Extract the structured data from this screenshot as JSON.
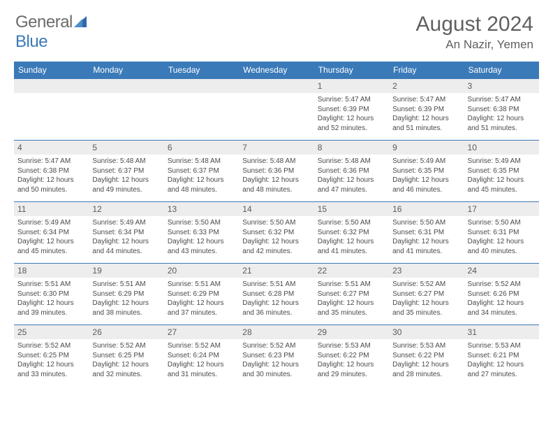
{
  "brand": {
    "text_gray": "General",
    "text_blue": "Blue"
  },
  "header": {
    "month_title": "August 2024",
    "location": "An Nazir, Yemen"
  },
  "colors": {
    "header_bg": "#3b7ab8",
    "header_text": "#ffffff",
    "daynum_bg": "#ededed",
    "border": "#3b7ab8",
    "body_text": "#4a4a4a",
    "title_text": "#606060"
  },
  "day_headers": [
    "Sunday",
    "Monday",
    "Tuesday",
    "Wednesday",
    "Thursday",
    "Friday",
    "Saturday"
  ],
  "weeks": [
    [
      {
        "n": "",
        "sr": "",
        "ss": "",
        "dl": ""
      },
      {
        "n": "",
        "sr": "",
        "ss": "",
        "dl": ""
      },
      {
        "n": "",
        "sr": "",
        "ss": "",
        "dl": ""
      },
      {
        "n": "",
        "sr": "",
        "ss": "",
        "dl": ""
      },
      {
        "n": "1",
        "sr": "5:47 AM",
        "ss": "6:39 PM",
        "dl": "12 hours and 52 minutes."
      },
      {
        "n": "2",
        "sr": "5:47 AM",
        "ss": "6:39 PM",
        "dl": "12 hours and 51 minutes."
      },
      {
        "n": "3",
        "sr": "5:47 AM",
        "ss": "6:38 PM",
        "dl": "12 hours and 51 minutes."
      }
    ],
    [
      {
        "n": "4",
        "sr": "5:47 AM",
        "ss": "6:38 PM",
        "dl": "12 hours and 50 minutes."
      },
      {
        "n": "5",
        "sr": "5:48 AM",
        "ss": "6:37 PM",
        "dl": "12 hours and 49 minutes."
      },
      {
        "n": "6",
        "sr": "5:48 AM",
        "ss": "6:37 PM",
        "dl": "12 hours and 48 minutes."
      },
      {
        "n": "7",
        "sr": "5:48 AM",
        "ss": "6:36 PM",
        "dl": "12 hours and 48 minutes."
      },
      {
        "n": "8",
        "sr": "5:48 AM",
        "ss": "6:36 PM",
        "dl": "12 hours and 47 minutes."
      },
      {
        "n": "9",
        "sr": "5:49 AM",
        "ss": "6:35 PM",
        "dl": "12 hours and 46 minutes."
      },
      {
        "n": "10",
        "sr": "5:49 AM",
        "ss": "6:35 PM",
        "dl": "12 hours and 45 minutes."
      }
    ],
    [
      {
        "n": "11",
        "sr": "5:49 AM",
        "ss": "6:34 PM",
        "dl": "12 hours and 45 minutes."
      },
      {
        "n": "12",
        "sr": "5:49 AM",
        "ss": "6:34 PM",
        "dl": "12 hours and 44 minutes."
      },
      {
        "n": "13",
        "sr": "5:50 AM",
        "ss": "6:33 PM",
        "dl": "12 hours and 43 minutes."
      },
      {
        "n": "14",
        "sr": "5:50 AM",
        "ss": "6:32 PM",
        "dl": "12 hours and 42 minutes."
      },
      {
        "n": "15",
        "sr": "5:50 AM",
        "ss": "6:32 PM",
        "dl": "12 hours and 41 minutes."
      },
      {
        "n": "16",
        "sr": "5:50 AM",
        "ss": "6:31 PM",
        "dl": "12 hours and 41 minutes."
      },
      {
        "n": "17",
        "sr": "5:50 AM",
        "ss": "6:31 PM",
        "dl": "12 hours and 40 minutes."
      }
    ],
    [
      {
        "n": "18",
        "sr": "5:51 AM",
        "ss": "6:30 PM",
        "dl": "12 hours and 39 minutes."
      },
      {
        "n": "19",
        "sr": "5:51 AM",
        "ss": "6:29 PM",
        "dl": "12 hours and 38 minutes."
      },
      {
        "n": "20",
        "sr": "5:51 AM",
        "ss": "6:29 PM",
        "dl": "12 hours and 37 minutes."
      },
      {
        "n": "21",
        "sr": "5:51 AM",
        "ss": "6:28 PM",
        "dl": "12 hours and 36 minutes."
      },
      {
        "n": "22",
        "sr": "5:51 AM",
        "ss": "6:27 PM",
        "dl": "12 hours and 35 minutes."
      },
      {
        "n": "23",
        "sr": "5:52 AM",
        "ss": "6:27 PM",
        "dl": "12 hours and 35 minutes."
      },
      {
        "n": "24",
        "sr": "5:52 AM",
        "ss": "6:26 PM",
        "dl": "12 hours and 34 minutes."
      }
    ],
    [
      {
        "n": "25",
        "sr": "5:52 AM",
        "ss": "6:25 PM",
        "dl": "12 hours and 33 minutes."
      },
      {
        "n": "26",
        "sr": "5:52 AM",
        "ss": "6:25 PM",
        "dl": "12 hours and 32 minutes."
      },
      {
        "n": "27",
        "sr": "5:52 AM",
        "ss": "6:24 PM",
        "dl": "12 hours and 31 minutes."
      },
      {
        "n": "28",
        "sr": "5:52 AM",
        "ss": "6:23 PM",
        "dl": "12 hours and 30 minutes."
      },
      {
        "n": "29",
        "sr": "5:53 AM",
        "ss": "6:22 PM",
        "dl": "12 hours and 29 minutes."
      },
      {
        "n": "30",
        "sr": "5:53 AM",
        "ss": "6:22 PM",
        "dl": "12 hours and 28 minutes."
      },
      {
        "n": "31",
        "sr": "5:53 AM",
        "ss": "6:21 PM",
        "dl": "12 hours and 27 minutes."
      }
    ]
  ],
  "labels": {
    "sunrise": "Sunrise:",
    "sunset": "Sunset:",
    "daylight": "Daylight:"
  }
}
